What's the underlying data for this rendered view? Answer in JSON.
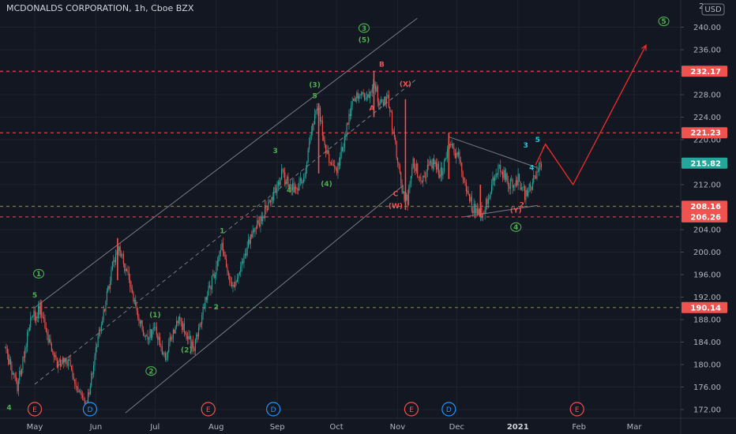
{
  "header": {
    "title": "MCDONALDS CORPORATION, 1h, Cboe BZX",
    "currency": "USD",
    "price_top_partial": "2"
  },
  "chart_data": {
    "type": "candlestick",
    "symbol": "MCDONALDS CORPORATION",
    "interval": "1h",
    "exchange": "Cboe BZX",
    "y_axis": {
      "ticks": [
        172,
        176,
        180,
        184,
        188,
        192,
        196,
        200,
        204,
        208,
        212,
        216,
        220,
        224,
        228,
        232,
        236,
        240
      ],
      "tick_labels": [
        "172.00",
        "176.00",
        "180.00",
        "184.00",
        "188.00",
        "192.00",
        "196.00",
        "200.00",
        "204.00",
        "208.00",
        "212.00",
        "216.00",
        "220.00",
        "224.00",
        "228.00",
        "232.00",
        "236.00",
        "240.00"
      ],
      "range": [
        171,
        243
      ]
    },
    "x_axis": {
      "ticks": [
        "2020-05-01",
        "2020-06-01",
        "2020-07-01",
        "2020-08-01",
        "2020-09-01",
        "2020-10-01",
        "2020-11-01",
        "2020-12-01",
        "2021-01-01",
        "2021-02-01",
        "2021-03-01"
      ],
      "tick_labels": [
        "May",
        "Jun",
        "Jul",
        "Aug",
        "Sep",
        "Oct",
        "Nov",
        "Dec",
        "2021",
        "Feb",
        "Mar"
      ]
    },
    "price_levels": [
      {
        "value": 232.17,
        "label": "232.17",
        "color": "#ef5350"
      },
      {
        "value": 221.23,
        "label": "221.23",
        "color": "#ef5350"
      },
      {
        "value": 208.16,
        "label": "208.16",
        "color": "#ef5350"
      },
      {
        "value": 206.26,
        "label": "206.26",
        "color": "#ef5350"
      },
      {
        "value": 190.14,
        "label": "190.14",
        "color": "#ef5350"
      }
    ],
    "last_price": {
      "value": 215.82,
      "label": "215.82",
      "color": "#26a69a"
    },
    "price_path": [
      {
        "x": "2020-04-16",
        "y": 183
      },
      {
        "x": "2020-04-22",
        "y": 176
      },
      {
        "x": "2020-04-29",
        "y": 188
      },
      {
        "x": "2020-05-04",
        "y": 190
      },
      {
        "x": "2020-05-08",
        "y": 184
      },
      {
        "x": "2020-05-13",
        "y": 180
      },
      {
        "x": "2020-05-18",
        "y": 181
      },
      {
        "x": "2020-05-22",
        "y": 177
      },
      {
        "x": "2020-05-27",
        "y": 172
      },
      {
        "x": "2020-06-01",
        "y": 183
      },
      {
        "x": "2020-06-05",
        "y": 189
      },
      {
        "x": "2020-06-09",
        "y": 197
      },
      {
        "x": "2020-06-12",
        "y": 201
      },
      {
        "x": "2020-06-16",
        "y": 197
      },
      {
        "x": "2020-06-22",
        "y": 189
      },
      {
        "x": "2020-06-26",
        "y": 185
      },
      {
        "x": "2020-07-01",
        "y": 186
      },
      {
        "x": "2020-07-06",
        "y": 181
      },
      {
        "x": "2020-07-10",
        "y": 186
      },
      {
        "x": "2020-07-13",
        "y": 188
      },
      {
        "x": "2020-07-17",
        "y": 185
      },
      {
        "x": "2020-07-21",
        "y": 183
      },
      {
        "x": "2020-07-27",
        "y": 192
      },
      {
        "x": "2020-08-01",
        "y": 197
      },
      {
        "x": "2020-08-04",
        "y": 201
      },
      {
        "x": "2020-08-07",
        "y": 196
      },
      {
        "x": "2020-08-10",
        "y": 194
      },
      {
        "x": "2020-08-14",
        "y": 198
      },
      {
        "x": "2020-08-19",
        "y": 203
      },
      {
        "x": "2020-08-25",
        "y": 207
      },
      {
        "x": "2020-08-31",
        "y": 211
      },
      {
        "x": "2020-09-03",
        "y": 214
      },
      {
        "x": "2020-09-07",
        "y": 212
      },
      {
        "x": "2020-09-11",
        "y": 211
      },
      {
        "x": "2020-09-15",
        "y": 214
      },
      {
        "x": "2020-09-18",
        "y": 221
      },
      {
        "x": "2020-09-22",
        "y": 226
      },
      {
        "x": "2020-09-25",
        "y": 218
      },
      {
        "x": "2020-10-01",
        "y": 214
      },
      {
        "x": "2020-10-05",
        "y": 220
      },
      {
        "x": "2020-10-09",
        "y": 226
      },
      {
        "x": "2020-10-13",
        "y": 229
      },
      {
        "x": "2020-10-16",
        "y": 227
      },
      {
        "x": "2020-10-20",
        "y": 231
      },
      {
        "x": "2020-10-23",
        "y": 226
      },
      {
        "x": "2020-10-27",
        "y": 228
      },
      {
        "x": "2020-10-30",
        "y": 221
      },
      {
        "x": "2020-11-03",
        "y": 211
      },
      {
        "x": "2020-11-06",
        "y": 209
      },
      {
        "x": "2020-11-09",
        "y": 216
      },
      {
        "x": "2020-11-13",
        "y": 213
      },
      {
        "x": "2020-11-18",
        "y": 216
      },
      {
        "x": "2020-11-23",
        "y": 214
      },
      {
        "x": "2020-11-27",
        "y": 219
      },
      {
        "x": "2020-12-02",
        "y": 217
      },
      {
        "x": "2020-12-05",
        "y": 212
      },
      {
        "x": "2020-12-09",
        "y": 208
      },
      {
        "x": "2020-12-14",
        "y": 207
      },
      {
        "x": "2020-12-18",
        "y": 211
      },
      {
        "x": "2020-12-22",
        "y": 215
      },
      {
        "x": "2020-12-28",
        "y": 212
      },
      {
        "x": "2021-01-01",
        "y": 213
      },
      {
        "x": "2021-01-05",
        "y": 210
      },
      {
        "x": "2021-01-08",
        "y": 212
      },
      {
        "x": "2021-01-13",
        "y": 215.82
      }
    ],
    "spikes": [
      {
        "x": "2020-06-12",
        "high": 202.5,
        "low": 195
      },
      {
        "x": "2020-09-22",
        "high": 226.5,
        "low": 214
      },
      {
        "x": "2020-10-20",
        "high": 232.2,
        "low": 224
      },
      {
        "x": "2020-11-05",
        "high": 227.2,
        "low": 207.5
      },
      {
        "x": "2020-11-27",
        "high": 221.2,
        "low": 213
      },
      {
        "x": "2020-12-13",
        "high": 212,
        "low": 206.3
      }
    ],
    "channel": {
      "upper": {
        "from": {
          "x": "2020-05-01",
          "y": 190.14
        },
        "to": {
          "x": "2020-11-11",
          "y": 241.6
        }
      },
      "lower": {
        "from": {
          "x": "2020-06-16",
          "y": 171.4
        },
        "to": {
          "x": "2020-11-04",
          "y": 211.9
        }
      },
      "middle": {
        "from": {
          "x": "2020-05-01",
          "y": 176.5
        },
        "to": {
          "x": "2020-11-11",
          "y": 230.9
        }
      }
    },
    "triangle": {
      "upper": {
        "from": {
          "x": "2020-11-27",
          "y": 220.5
        },
        "to": {
          "x": "2021-01-11",
          "y": 215
        }
      },
      "lower": {
        "from": {
          "x": "2020-12-05",
          "y": 206.3
        },
        "to": {
          "x": "2021-01-11",
          "y": 208.3
        }
      }
    },
    "projection": [
      {
        "x": "2021-01-10",
        "y": 215.5
      },
      {
        "x": "2021-01-15",
        "y": 219.2
      },
      {
        "x": "2021-01-29",
        "y": 212
      },
      {
        "x": "2021-03-07",
        "y": 236.8
      }
    ],
    "wave_labels": [
      {
        "text": "4",
        "x": "2020-04-18",
        "y": 171.9,
        "color": "#4caf50",
        "circled": false
      },
      {
        "text": "5",
        "x": "2020-05-01",
        "y": 191.9,
        "color": "#4caf50",
        "circled": false
      },
      {
        "text": "1",
        "x": "2020-05-03",
        "y": 195.7,
        "color": "#4caf50",
        "circled": true
      },
      {
        "text": "2",
        "x": "2020-06-29",
        "y": 178.4,
        "color": "#4caf50",
        "circled": true
      },
      {
        "text": "(1)",
        "x": "2020-07-01",
        "y": 188.4,
        "color": "#4caf50",
        "circled": false
      },
      {
        "text": "(2)",
        "x": "2020-07-17",
        "y": 182.2,
        "color": "#4caf50",
        "circled": false
      },
      {
        "text": "1",
        "x": "2020-08-04",
        "y": 203.4,
        "color": "#4caf50",
        "circled": false
      },
      {
        "text": "2",
        "x": "2020-08-01",
        "y": 189.8,
        "color": "#4caf50",
        "circled": false
      },
      {
        "text": "3",
        "x": "2020-08-31",
        "y": 217.6,
        "color": "#4caf50",
        "circled": false
      },
      {
        "text": "4",
        "x": "2020-09-07",
        "y": 210.6,
        "color": "#4caf50",
        "circled": false
      },
      {
        "text": "(3)",
        "x": "2020-09-20",
        "y": 229.3,
        "color": "#4caf50",
        "circled": false
      },
      {
        "text": "5",
        "x": "2020-09-20",
        "y": 227.4,
        "color": "#4caf50",
        "circled": false
      },
      {
        "text": "(4)",
        "x": "2020-09-26",
        "y": 211.7,
        "color": "#4caf50",
        "circled": false
      },
      {
        "text": "3",
        "x": "2020-10-15",
        "y": 239.4,
        "color": "#4caf50",
        "circled": true
      },
      {
        "text": "(5)",
        "x": "2020-10-15",
        "y": 237.3,
        "color": "#4caf50",
        "circled": false
      },
      {
        "text": "B",
        "x": "2020-10-24",
        "y": 233,
        "color": "#ef5350",
        "circled": false
      },
      {
        "text": "A",
        "x": "2020-10-19",
        "y": 225.2,
        "color": "#ef5350",
        "circled": false
      },
      {
        "text": "(X)",
        "x": "2020-11-05",
        "y": 229.5,
        "color": "#ef5350",
        "circled": false
      },
      {
        "text": "C",
        "x": "2020-10-31",
        "y": 210,
        "color": "#ef5350",
        "circled": false
      },
      {
        "text": "(W)",
        "x": "2020-10-31",
        "y": 207.8,
        "color": "#ef5350",
        "circled": false
      },
      {
        "text": "2",
        "x": "2021-01-03",
        "y": 208,
        "color": "#ef5350",
        "circled": false
      },
      {
        "text": "(Y)",
        "x": "2020-12-31",
        "y": 207,
        "color": "#ef5350",
        "circled": false
      },
      {
        "text": "4",
        "x": "2020-12-31",
        "y": 204,
        "color": "#4caf50",
        "circled": true
      },
      {
        "text": "3",
        "x": "2021-01-05",
        "y": 218.6,
        "color": "#26c6da",
        "circled": false
      },
      {
        "text": "5",
        "x": "2021-01-11",
        "y": 219.6,
        "color": "#26c6da",
        "circled": false
      },
      {
        "text": "4",
        "x": "2021-01-08",
        "y": 214.6,
        "color": "#26c6da",
        "circled": false
      },
      {
        "text": "5",
        "x": "2021-03-16",
        "y": 240.6,
        "color": "#4caf50",
        "circled": true
      }
    ],
    "events": [
      {
        "text": "E",
        "x": "2020-05-01",
        "kind": "earnings",
        "color": "#ef5350"
      },
      {
        "text": "D",
        "x": "2020-05-29",
        "kind": "dividend",
        "color": "#2196f3"
      },
      {
        "text": "E",
        "x": "2020-07-28",
        "kind": "earnings",
        "color": "#ef5350"
      },
      {
        "text": "D",
        "x": "2020-08-30",
        "kind": "dividend",
        "color": "#2196f3"
      },
      {
        "text": "E",
        "x": "2020-11-08",
        "kind": "earnings",
        "color": "#ef5350"
      },
      {
        "text": "D",
        "x": "2020-11-27",
        "kind": "dividend",
        "color": "#2196f3"
      },
      {
        "text": "E",
        "x": "2021-01-31",
        "kind": "earnings",
        "color": "#ef5350"
      }
    ]
  }
}
